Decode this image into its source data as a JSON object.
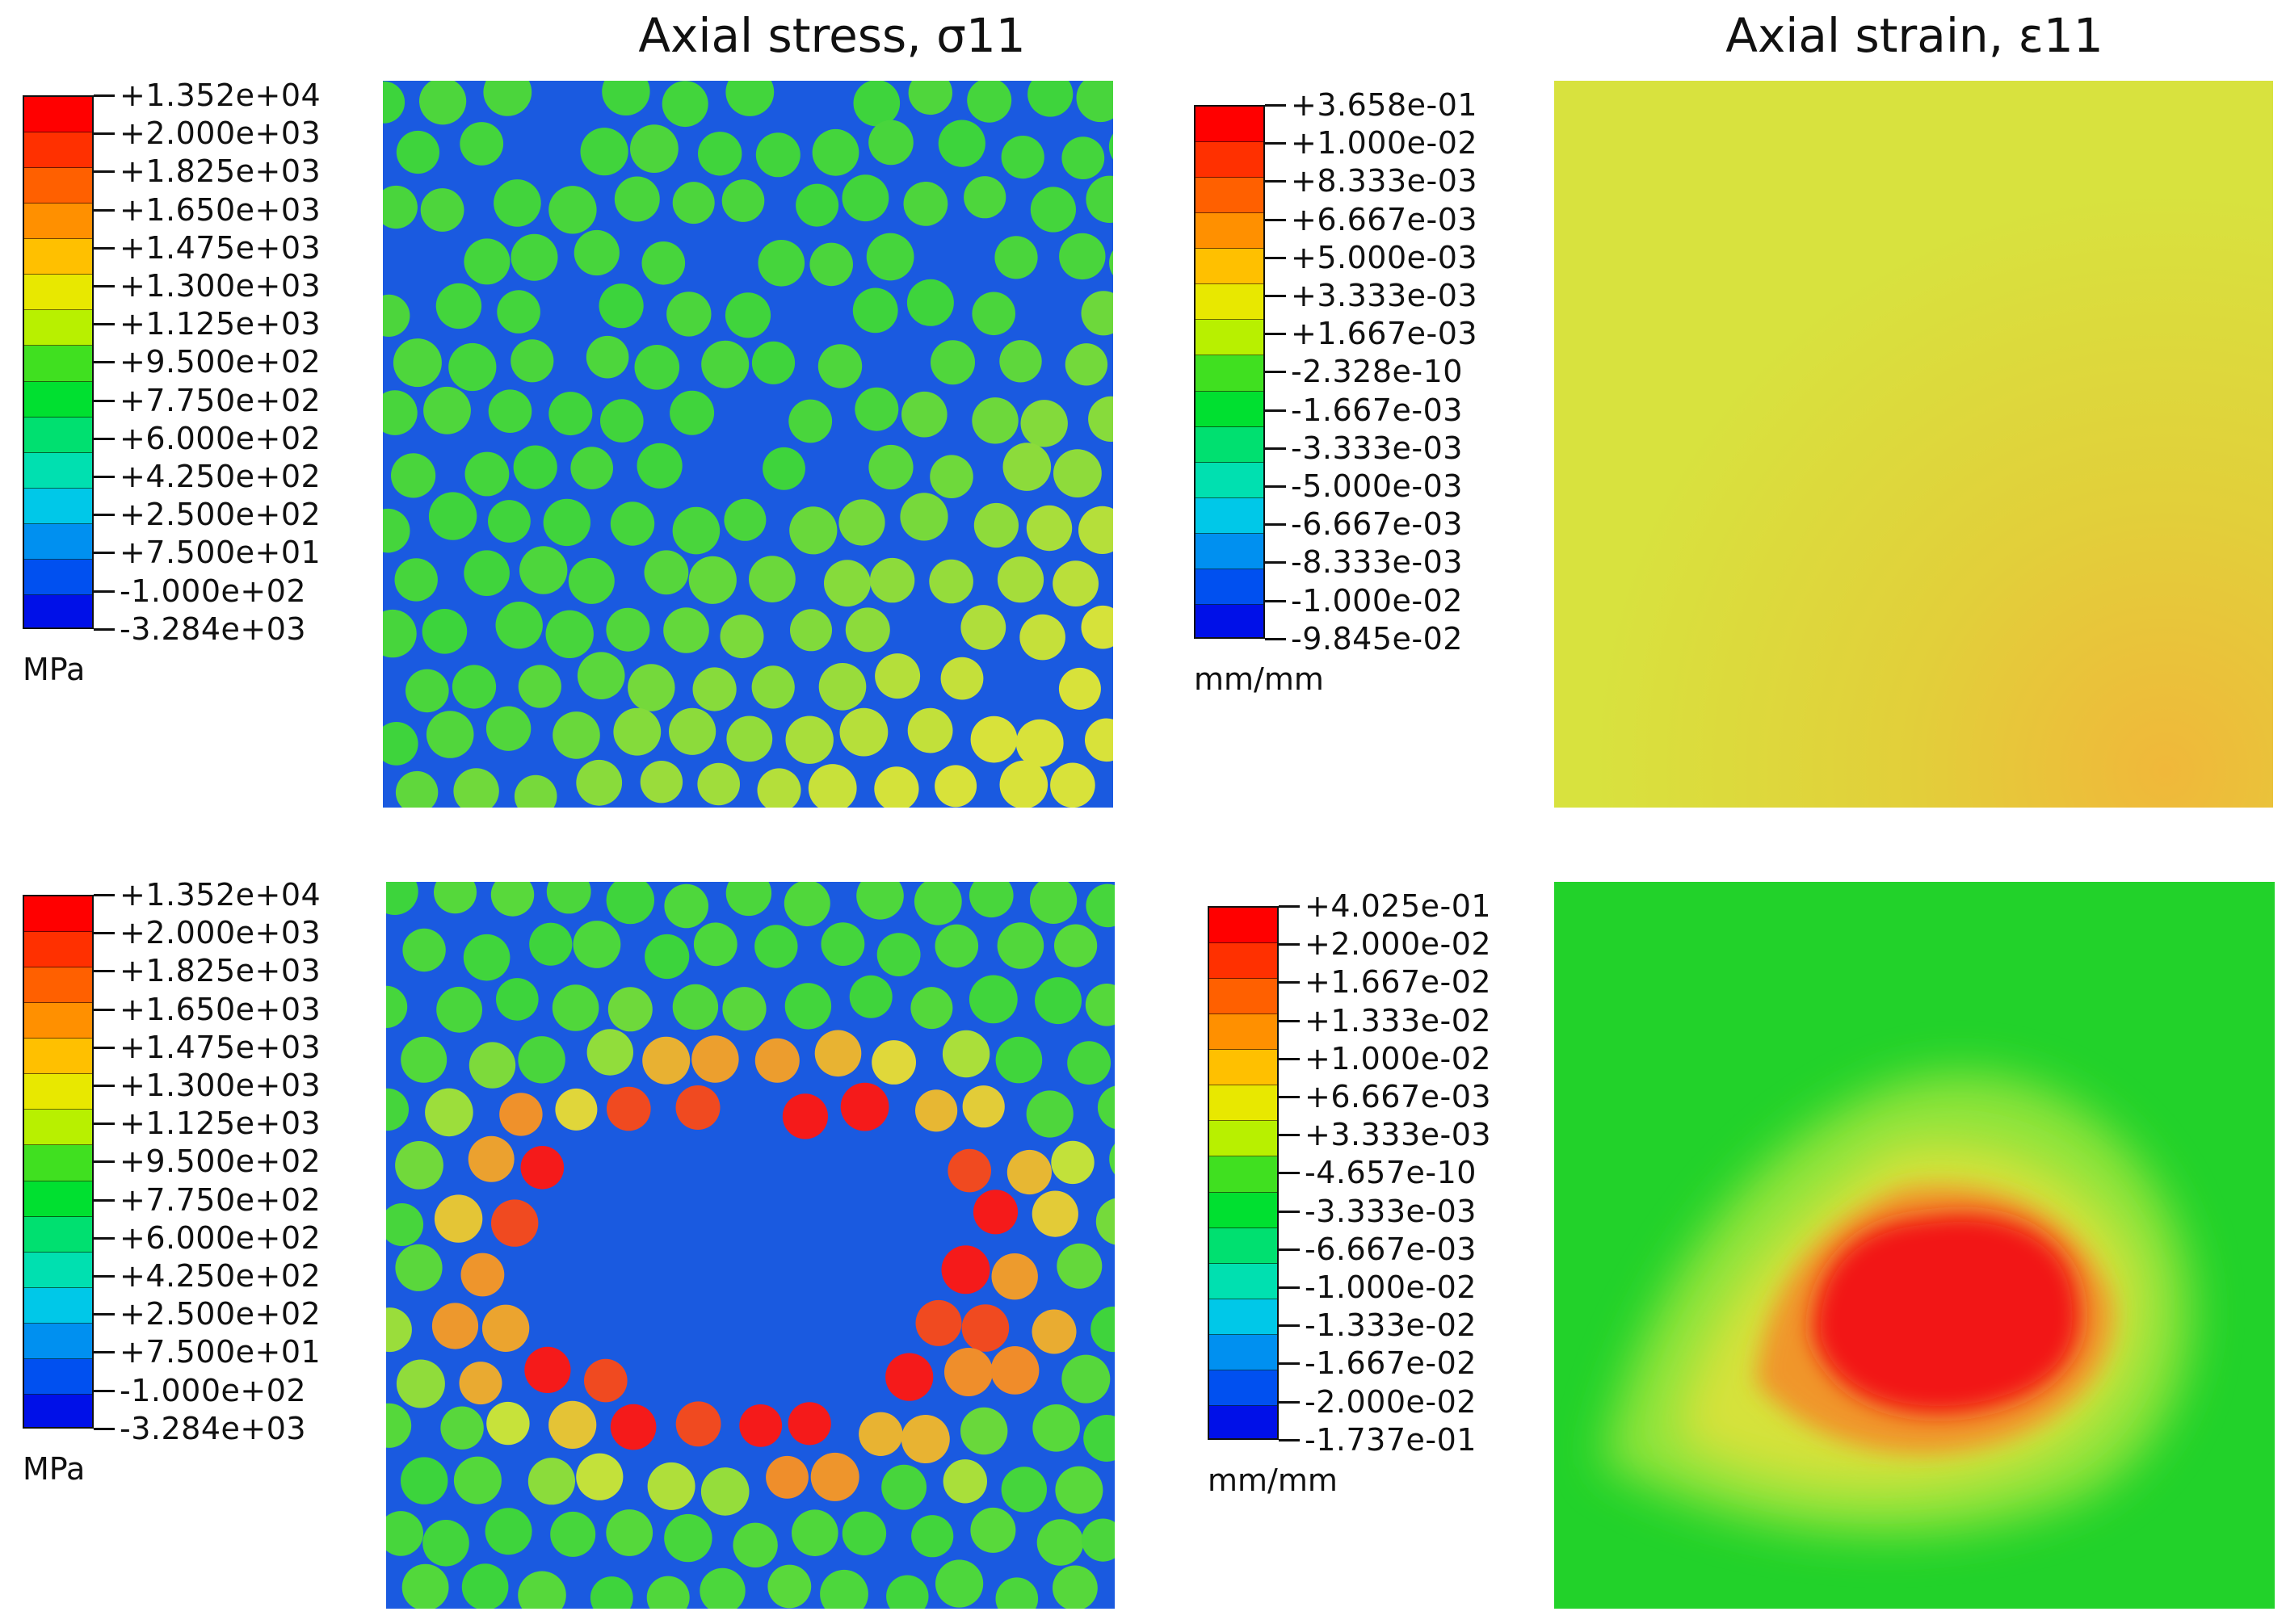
{
  "titles": {
    "stress": "Axial stress, σ11",
    "strain": "Axial strain, ε11"
  },
  "legends": {
    "stress_top": {
      "unit": "MPa",
      "labels": [
        "+1.352e+04",
        "+2.000e+03",
        "+1.825e+03",
        "+1.650e+03",
        "+1.475e+03",
        "+1.300e+03",
        "+1.125e+03",
        "+9.500e+02",
        "+7.750e+02",
        "+6.000e+02",
        "+4.250e+02",
        "+2.500e+02",
        "+7.500e+01",
        "-1.000e+02",
        "-3.284e+03"
      ]
    },
    "stress_bottom": {
      "unit": "MPa",
      "labels": [
        "+1.352e+04",
        "+2.000e+03",
        "+1.825e+03",
        "+1.650e+03",
        "+1.475e+03",
        "+1.300e+03",
        "+1.125e+03",
        "+9.500e+02",
        "+7.750e+02",
        "+6.000e+02",
        "+4.250e+02",
        "+2.500e+02",
        "+7.500e+01",
        "-1.000e+02",
        "-3.284e+03"
      ]
    },
    "strain_top": {
      "unit": "mm/mm",
      "labels": [
        "+3.658e-01",
        "+1.000e-02",
        "+8.333e-03",
        "+6.667e-03",
        "+5.000e-03",
        "+3.333e-03",
        "+1.667e-03",
        "-2.328e-10",
        "-1.667e-03",
        "-3.333e-03",
        "-5.000e-03",
        "-6.667e-03",
        "-8.333e-03",
        "-1.000e-02",
        "-9.845e-02"
      ]
    },
    "strain_bottom": {
      "unit": "mm/mm",
      "labels": [
        "+4.025e-01",
        "+2.000e-02",
        "+1.667e-02",
        "+1.333e-02",
        "+1.000e-02",
        "+6.667e-03",
        "+3.333e-03",
        "-4.657e-10",
        "-3.333e-03",
        "-6.667e-03",
        "-1.000e-02",
        "-1.333e-02",
        "-1.667e-02",
        "-2.000e-02",
        "-1.737e-01"
      ]
    }
  },
  "colors": {
    "bands": [
      "#ff0000",
      "#ff3000",
      "#ff6000",
      "#ff9000",
      "#ffc000",
      "#e8e800",
      "#b8f000",
      "#40e020",
      "#00e030",
      "#00e070",
      "#00e0b0",
      "#00c8e8",
      "#0090f0",
      "#0050f0",
      "#0010e8"
    ],
    "matrix_blue": "#1a5ae0",
    "fiber_green": "#3cd43c",
    "strain_top_field": "#d7e23c",
    "strain_bottom_field": "#22d22a"
  }
}
